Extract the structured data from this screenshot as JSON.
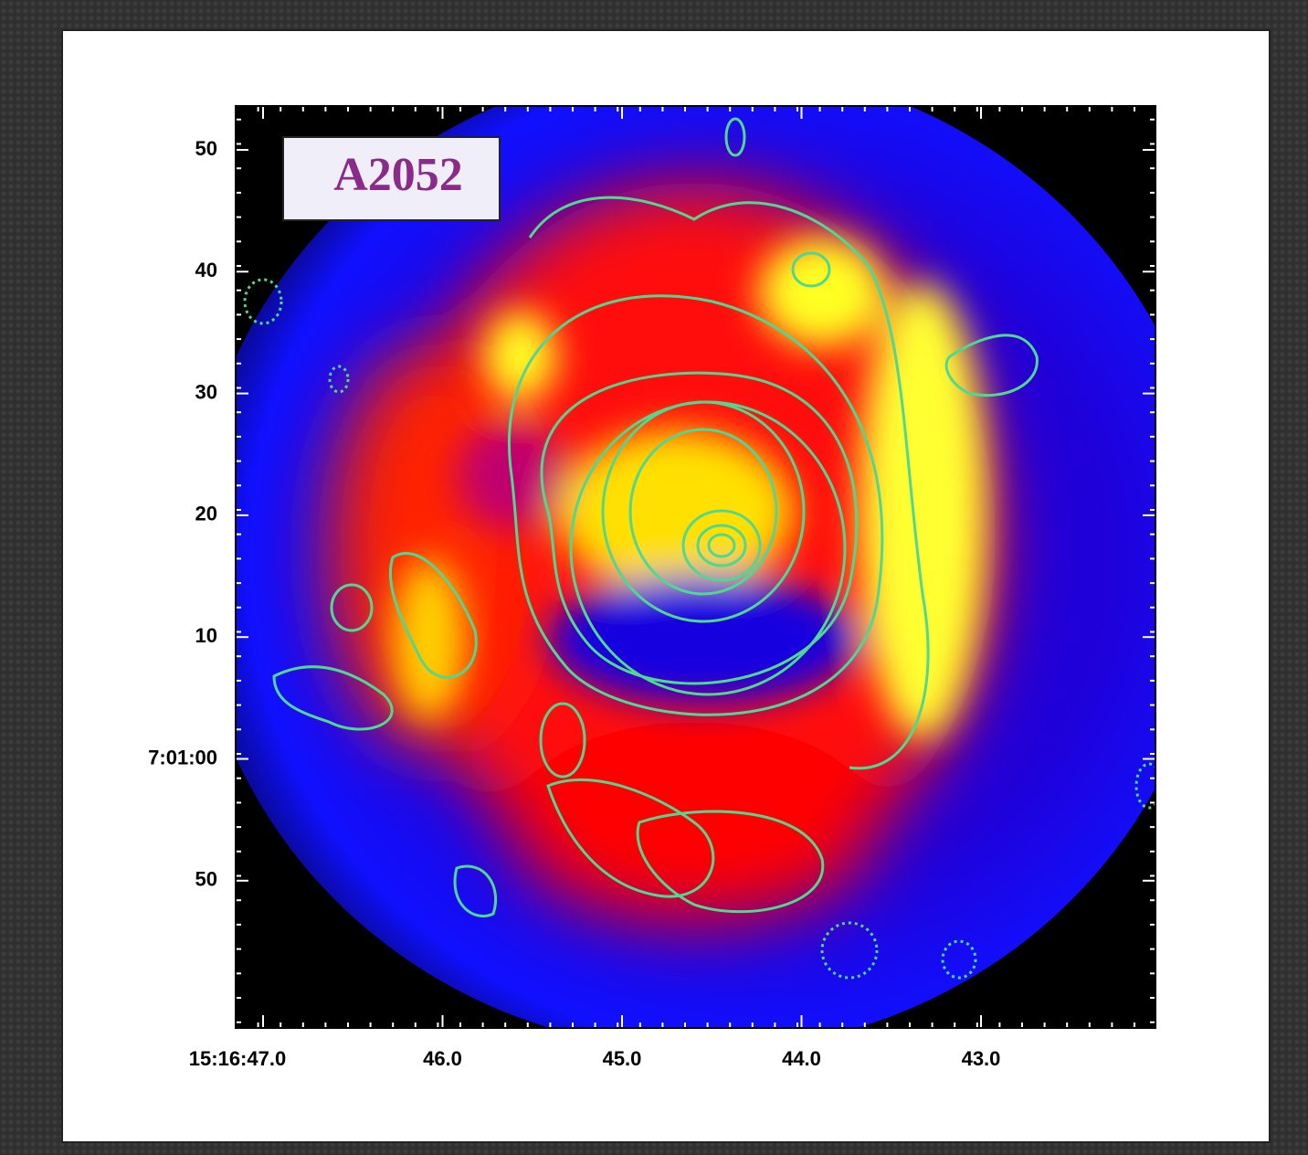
{
  "label": "A2052",
  "y_axis": {
    "ticks": [
      "50",
      "40",
      "30",
      "20",
      "10",
      "7:01:00",
      "50"
    ]
  },
  "x_axis": {
    "ticks": [
      "15:16:47.0",
      "46.0",
      "45.0",
      "44.0",
      "43.0"
    ]
  }
}
